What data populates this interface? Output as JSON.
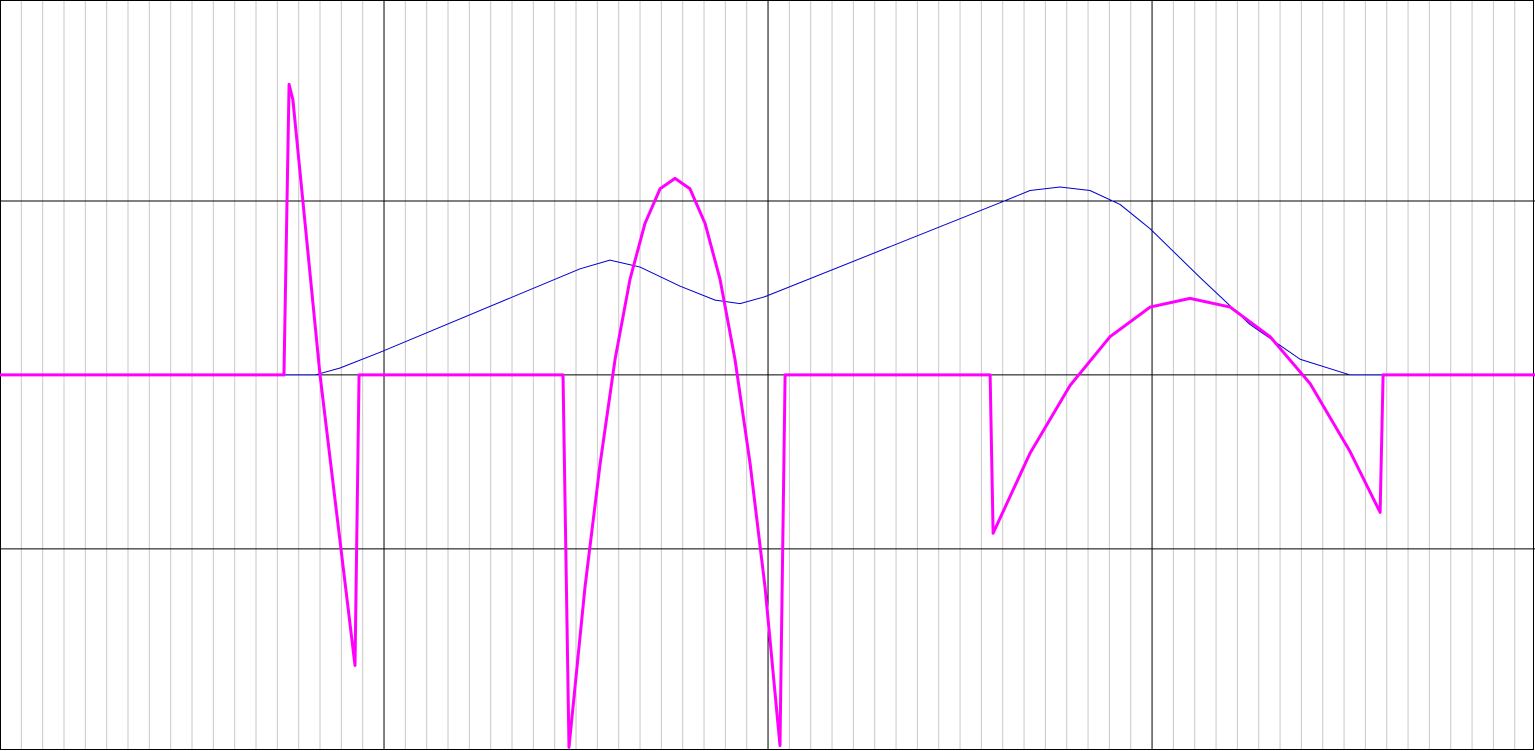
{
  "chart_data": {
    "type": "line",
    "xlim": [
      0,
      71.95
    ],
    "ylim": [
      -2.15,
      2.155
    ],
    "xticks": [
      18,
      36,
      54
    ],
    "yticks": [
      -1,
      0,
      1
    ],
    "x_minor_ticks": [
      1,
      2,
      3,
      4,
      5,
      6,
      7,
      8,
      9,
      10,
      11,
      12,
      13,
      14,
      15,
      16,
      17,
      19,
      20,
      21,
      22,
      23,
      24,
      25,
      26,
      27,
      28,
      29,
      30,
      31,
      32,
      33,
      34,
      35,
      37,
      38,
      39,
      40,
      41,
      42,
      43,
      44,
      45,
      46,
      47,
      48,
      49,
      50,
      51,
      52,
      53,
      55,
      56,
      57,
      58,
      59,
      60,
      61,
      62,
      63,
      64,
      65,
      66,
      67,
      68,
      69,
      70,
      71
    ],
    "grid": true,
    "grid_color": "#000000",
    "minor_grid_color": "#c8c8c8",
    "series": [
      {
        "color": "#0000cc",
        "width": 1,
        "x": [
          0,
          14.77,
          15.94,
          17.81,
          27.19,
          28.59,
          30.0,
          31.88,
          33.52,
          34.69,
          35.86,
          46.88,
          48.28,
          49.69,
          51.09,
          52.5,
          53.91,
          56.25,
          58.59,
          60.94,
          63.28,
          71.95
        ],
        "values": [
          0,
          0,
          0.04,
          0.13,
          0.61,
          0.66,
          0.62,
          0.51,
          0.43,
          0.41,
          0.45,
          0.99,
          1.06,
          1.08,
          1.06,
          0.98,
          0.84,
          0.56,
          0.29,
          0.09,
          0,
          0
        ]
      },
      {
        "color": "#ff00ff",
        "width": 3,
        "x": [
          0,
          13.31,
          13.55,
          13.73,
          15.0,
          16.64,
          16.83,
          26.39,
          26.67,
          27.42,
          28.13,
          28.83,
          29.53,
          30.23,
          30.94,
          31.64,
          32.34,
          33.05,
          33.75,
          34.45,
          35.16,
          35.86,
          36.56,
          36.8,
          46.41,
          46.55,
          48.28,
          50.16,
          52.03,
          53.91,
          55.78,
          57.66,
          59.53,
          61.41,
          63.28,
          64.69,
          64.83,
          71.95
        ],
        "values": [
          0,
          0,
          1.67,
          1.58,
          0,
          -1.67,
          0,
          0,
          -2.14,
          -1.22,
          -0.51,
          0.09,
          0.55,
          0.87,
          1.07,
          1.13,
          1.07,
          0.87,
          0.55,
          0.09,
          -0.51,
          -1.22,
          -2.13,
          0,
          0,
          -0.91,
          -0.45,
          -0.06,
          0.22,
          0.39,
          0.44,
          0.39,
          0.22,
          -0.05,
          -0.44,
          -0.79,
          0,
          0
        ]
      }
    ]
  }
}
